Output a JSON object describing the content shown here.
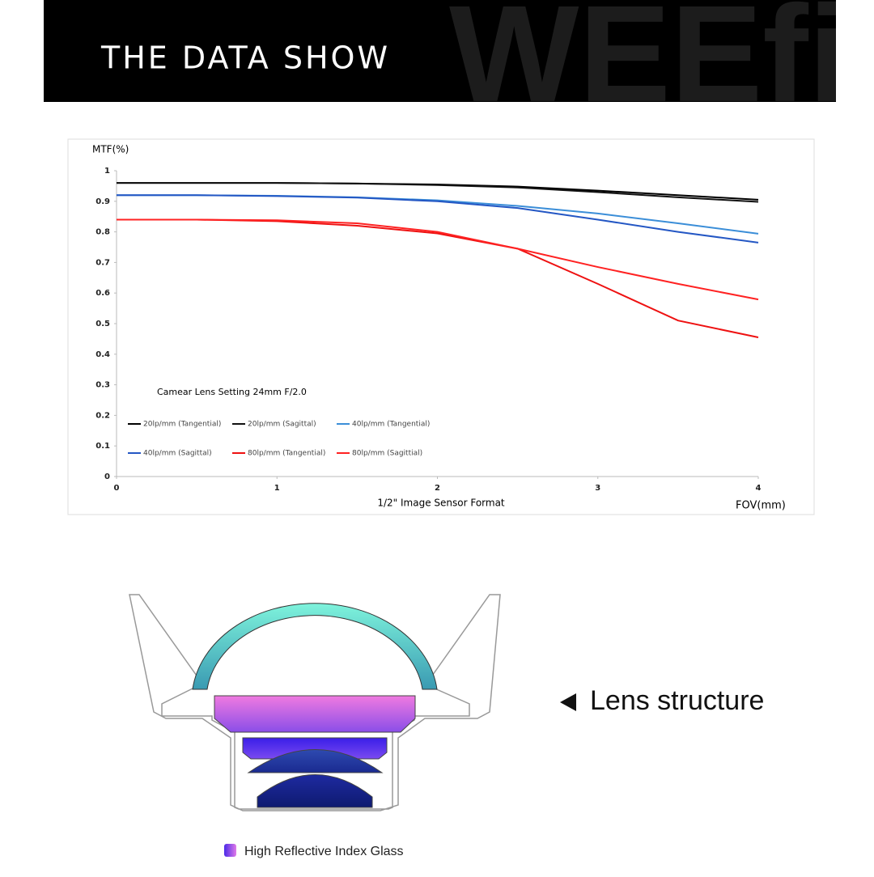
{
  "header": {
    "title": "THE DATA SHOW",
    "watermark": "WEEfi"
  },
  "chart_data": {
    "type": "line",
    "y_label": "MTF(%)",
    "x_label": "FOV(mm)",
    "x_caption": "1/2\" Image Sensor Format",
    "annotation": "Camear Lens Setting 24mm F/2.0",
    "x": [
      0,
      0.5,
      1,
      1.5,
      2,
      2.5,
      3,
      3.5,
      4
    ],
    "xlim": [
      0,
      4
    ],
    "xticks": [
      0,
      1,
      2,
      3,
      4
    ],
    "ylim": [
      0,
      1
    ],
    "yticks": [
      0,
      0.1,
      0.2,
      0.3,
      0.4,
      0.5,
      0.6,
      0.7,
      0.8,
      0.9,
      1
    ],
    "series": [
      {
        "name": "20lp/mm (Tangential)",
        "color": "#000000",
        "values": [
          0.96,
          0.96,
          0.96,
          0.958,
          0.955,
          0.948,
          0.935,
          0.92,
          0.905
        ]
      },
      {
        "name": "20lp/mm (Sagittal)",
        "color": "#111111",
        "values": [
          0.96,
          0.96,
          0.96,
          0.958,
          0.953,
          0.945,
          0.93,
          0.913,
          0.898
        ]
      },
      {
        "name": "40lp/mm (Tangential)",
        "color": "#3b8ed8",
        "values": [
          0.92,
          0.92,
          0.918,
          0.913,
          0.903,
          0.885,
          0.86,
          0.828,
          0.794
        ]
      },
      {
        "name": "40lp/mm (Sagittal)",
        "color": "#2457c4",
        "values": [
          0.92,
          0.92,
          0.917,
          0.912,
          0.9,
          0.878,
          0.84,
          0.8,
          0.765
        ]
      },
      {
        "name": "80lp/mm (Tangential)",
        "color": "#ee1111",
        "values": [
          0.84,
          0.84,
          0.835,
          0.82,
          0.795,
          0.745,
          0.63,
          0.51,
          0.455
        ]
      },
      {
        "name": "80lp/mm (Sagittial)",
        "color": "#ff2222",
        "values": [
          0.84,
          0.84,
          0.838,
          0.828,
          0.8,
          0.745,
          0.685,
          0.63,
          0.579
        ]
      }
    ]
  },
  "lens": {
    "label": "Lens structure",
    "legend": "High Reflective Index Glass"
  }
}
